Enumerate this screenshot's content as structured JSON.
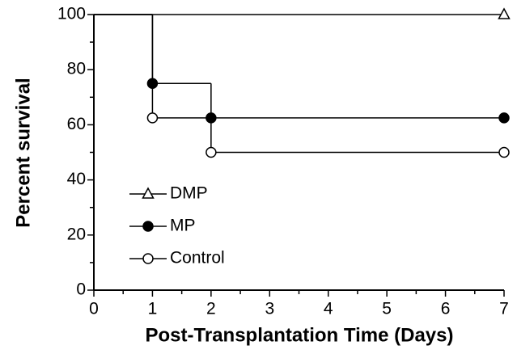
{
  "chart_data": {
    "type": "step",
    "xlabel": "Post-Transplantation Time (Days)",
    "ylabel": "Percent survival",
    "xlim": [
      0,
      7
    ],
    "xticks": [
      0,
      1,
      2,
      3,
      4,
      5,
      6,
      7
    ],
    "xminor": [
      0.5,
      1.5,
      2.5,
      3.5,
      4.5,
      5.5,
      6.5
    ],
    "ylim": [
      0,
      100
    ],
    "yticks": [
      0,
      20,
      40,
      60,
      80,
      100
    ],
    "yminor": [
      10,
      30,
      50,
      70,
      90
    ],
    "legend": "lower-left",
    "series": [
      {
        "name": "DMP",
        "color": "#000000",
        "marker": "open-triangle",
        "x": [
          0,
          7
        ],
        "values": [
          100,
          100
        ]
      },
      {
        "name": "MP",
        "color": "#000000",
        "marker": "filled-circle",
        "x": [
          0,
          1,
          2,
          7
        ],
        "values": [
          100,
          75,
          62.5,
          62.5
        ]
      },
      {
        "name": "Control",
        "color": "#000000",
        "marker": "open-circle",
        "x": [
          0,
          1,
          2,
          7
        ],
        "values": [
          100,
          62.5,
          50,
          50
        ]
      }
    ]
  }
}
